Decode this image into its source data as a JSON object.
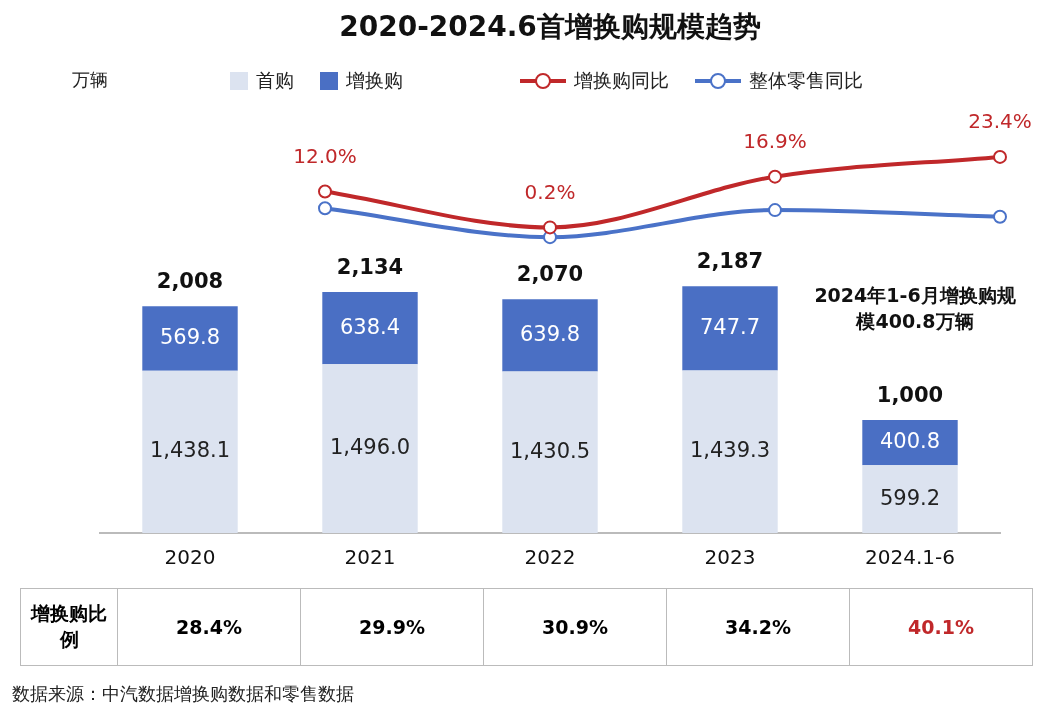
{
  "chart_data": [
    {
      "type": "bar",
      "stacked": true,
      "legend": "top",
      "categories": [
        "2020",
        "2021",
        "2022",
        "2023",
        "2024.1-6"
      ],
      "series": [
        {
          "name": "首购",
          "color": "#dce3f0",
          "values": [
            1438.1,
            1496.0,
            1430.5,
            1439.3,
            599.2
          ],
          "value_labels": [
            "1,438.1",
            "1,496.0",
            "1,430.5",
            "1,439.3",
            "599.2"
          ]
        },
        {
          "name": "增换购",
          "color": "#4a6fc4",
          "values": [
            569.8,
            638.4,
            639.8,
            747.7,
            400.8
          ],
          "value_labels": [
            "569.8",
            "638.4",
            "639.8",
            "747.7",
            "400.8"
          ]
        }
      ],
      "totals": [
        "2,008",
        "2,134",
        "2,070",
        "2,187",
        "1,000"
      ],
      "annotations": [
        "万辆",
        "2024年1-6月增换购规模400.8万辆",
        "增换购比例",
        "28.4%",
        "29.9%",
        "30.9%",
        "34.2%",
        "40.1%",
        "数据来源：中汽数据增换购数据和零售数据"
      ]
    },
    {
      "type": "line",
      "title": "2020-2024.6首增换购规模趋势",
      "legend": "top",
      "marker": "circle",
      "categories": [
        null,
        null,
        null,
        null,
        null
      ],
      "series": [
        {
          "name": "增换购同比",
          "color": "#c0282a",
          "values": [
            null,
            12.0,
            0.2,
            16.9,
            23.4
          ],
          "value_labels": [
            null,
            "12.0%",
            "0.2%",
            "16.9%",
            "23.4%"
          ]
        },
        {
          "name": "整体零售同比",
          "color": "#4a72c8",
          "values": [
            null,
            6.5,
            -3.0,
            5.9,
            3.7
          ]
        }
      ]
    }
  ]
}
